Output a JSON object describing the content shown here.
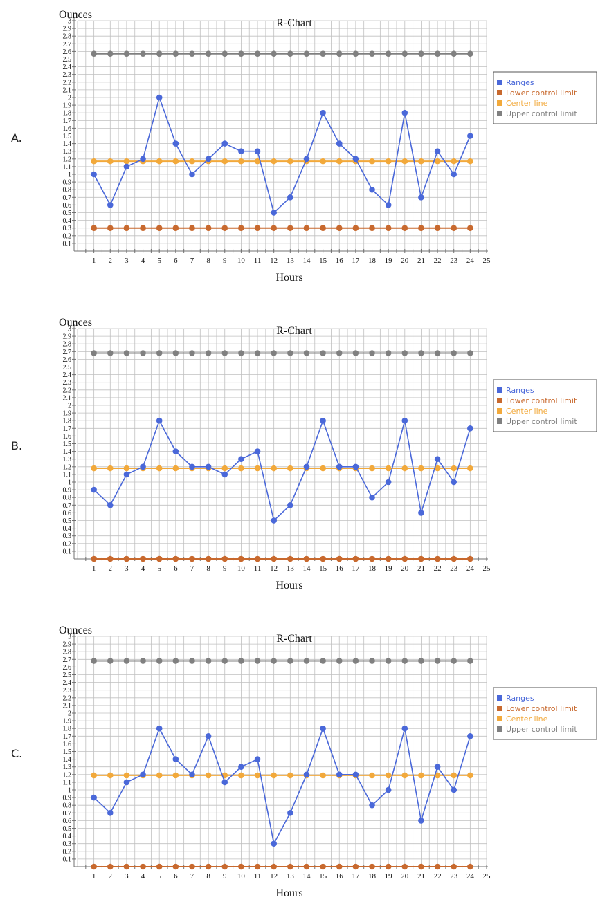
{
  "colors": {
    "ranges": "#4a68d9",
    "lcl": "#c8692e",
    "center": "#f2a93b",
    "ucl": "#808080",
    "grid": "#c0c0c0",
    "axis": "#707070"
  },
  "chart_data": [
    {
      "option": "A.",
      "type": "line",
      "title": "R-Chart",
      "ylabel": "Ounces",
      "xlabel": "Hours",
      "x": [
        1,
        2,
        3,
        4,
        5,
        6,
        7,
        8,
        9,
        10,
        11,
        12,
        13,
        14,
        15,
        16,
        17,
        18,
        19,
        20,
        21,
        22,
        23,
        24
      ],
      "xlim": [
        0,
        25
      ],
      "ylim": [
        0,
        3
      ],
      "series": [
        {
          "name": "Ranges",
          "values": [
            1.0,
            0.6,
            1.1,
            1.2,
            2.0,
            1.4,
            1.0,
            1.2,
            1.4,
            1.3,
            1.3,
            0.5,
            0.7,
            1.2,
            1.8,
            1.4,
            1.2,
            0.8,
            0.6,
            1.8,
            0.7,
            1.3,
            1.0,
            1.5
          ]
        },
        {
          "name": "Lower control limit",
          "values": [
            0.3,
            0.3,
            0.3,
            0.3,
            0.3,
            0.3,
            0.3,
            0.3,
            0.3,
            0.3,
            0.3,
            0.3,
            0.3,
            0.3,
            0.3,
            0.3,
            0.3,
            0.3,
            0.3,
            0.3,
            0.3,
            0.3,
            0.3,
            0.3
          ]
        },
        {
          "name": "Center line",
          "values": [
            1.17,
            1.17,
            1.17,
            1.17,
            1.17,
            1.17,
            1.17,
            1.17,
            1.17,
            1.17,
            1.17,
            1.17,
            1.17,
            1.17,
            1.17,
            1.17,
            1.17,
            1.17,
            1.17,
            1.17,
            1.17,
            1.17,
            1.17,
            1.17
          ]
        },
        {
          "name": "Upper control limit",
          "values": [
            2.57,
            2.57,
            2.57,
            2.57,
            2.57,
            2.57,
            2.57,
            2.57,
            2.57,
            2.57,
            2.57,
            2.57,
            2.57,
            2.57,
            2.57,
            2.57,
            2.57,
            2.57,
            2.57,
            2.57,
            2.57,
            2.57,
            2.57,
            2.57
          ]
        }
      ]
    },
    {
      "option": "B.",
      "type": "line",
      "title": "R-Chart",
      "ylabel": "Ounces",
      "xlabel": "Hours",
      "x": [
        1,
        2,
        3,
        4,
        5,
        6,
        7,
        8,
        9,
        10,
        11,
        12,
        13,
        14,
        15,
        16,
        17,
        18,
        19,
        20,
        21,
        22,
        23,
        24
      ],
      "xlim": [
        0,
        25
      ],
      "ylim": [
        0,
        3
      ],
      "series": [
        {
          "name": "Ranges",
          "values": [
            0.9,
            0.7,
            1.1,
            1.2,
            1.8,
            1.4,
            1.2,
            1.2,
            1.1,
            1.3,
            1.4,
            0.5,
            0.7,
            1.2,
            1.8,
            1.2,
            1.2,
            0.8,
            1.0,
            1.8,
            0.6,
            1.3,
            1.0,
            1.7
          ]
        },
        {
          "name": "Lower control limit",
          "values": [
            0,
            0,
            0,
            0,
            0,
            0,
            0,
            0,
            0,
            0,
            0,
            0,
            0,
            0,
            0,
            0,
            0,
            0,
            0,
            0,
            0,
            0,
            0,
            0
          ]
        },
        {
          "name": "Center line",
          "values": [
            1.18,
            1.18,
            1.18,
            1.18,
            1.18,
            1.18,
            1.18,
            1.18,
            1.18,
            1.18,
            1.18,
            1.18,
            1.18,
            1.18,
            1.18,
            1.18,
            1.18,
            1.18,
            1.18,
            1.18,
            1.18,
            1.18,
            1.18,
            1.18
          ]
        },
        {
          "name": "Upper control limit",
          "values": [
            2.68,
            2.68,
            2.68,
            2.68,
            2.68,
            2.68,
            2.68,
            2.68,
            2.68,
            2.68,
            2.68,
            2.68,
            2.68,
            2.68,
            2.68,
            2.68,
            2.68,
            2.68,
            2.68,
            2.68,
            2.68,
            2.68,
            2.68,
            2.68
          ]
        }
      ]
    },
    {
      "option": "C.",
      "type": "line",
      "title": "R-Chart",
      "ylabel": "Ounces",
      "xlabel": "Hours",
      "x": [
        1,
        2,
        3,
        4,
        5,
        6,
        7,
        8,
        9,
        10,
        11,
        12,
        13,
        14,
        15,
        16,
        17,
        18,
        19,
        20,
        21,
        22,
        23,
        24
      ],
      "xlim": [
        0,
        25
      ],
      "ylim": [
        0,
        3
      ],
      "series": [
        {
          "name": "Ranges",
          "values": [
            0.9,
            0.7,
            1.1,
            1.2,
            1.8,
            1.4,
            1.2,
            1.7,
            1.1,
            1.3,
            1.4,
            0.3,
            0.7,
            1.2,
            1.8,
            1.2,
            1.2,
            0.8,
            1.0,
            1.8,
            0.6,
            1.3,
            1.0,
            1.7
          ]
        },
        {
          "name": "Lower control limit",
          "values": [
            0,
            0,
            0,
            0,
            0,
            0,
            0,
            0,
            0,
            0,
            0,
            0,
            0,
            0,
            0,
            0,
            0,
            0,
            0,
            0,
            0,
            0,
            0,
            0
          ]
        },
        {
          "name": "Center line",
          "values": [
            1.19,
            1.19,
            1.19,
            1.19,
            1.19,
            1.19,
            1.19,
            1.19,
            1.19,
            1.19,
            1.19,
            1.19,
            1.19,
            1.19,
            1.19,
            1.19,
            1.19,
            1.19,
            1.19,
            1.19,
            1.19,
            1.19,
            1.19,
            1.19
          ]
        },
        {
          "name": "Upper control limit",
          "values": [
            2.68,
            2.68,
            2.68,
            2.68,
            2.68,
            2.68,
            2.68,
            2.68,
            2.68,
            2.68,
            2.68,
            2.68,
            2.68,
            2.68,
            2.68,
            2.68,
            2.68,
            2.68,
            2.68,
            2.68,
            2.68,
            2.68,
            2.68,
            2.68
          ]
        }
      ]
    }
  ]
}
